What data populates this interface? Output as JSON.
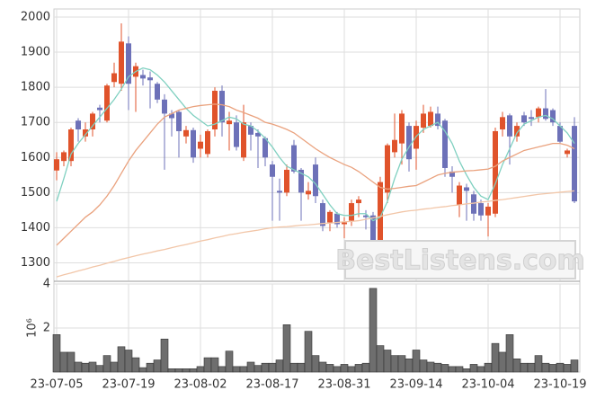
{
  "watermark": "BestListens.com",
  "chart_data": [
    {
      "type": "candlestick",
      "categories": [
        "23-07-05",
        null,
        null,
        null,
        null,
        null,
        null,
        null,
        null,
        null,
        "23-07-19",
        null,
        null,
        null,
        null,
        null,
        null,
        null,
        null,
        null,
        "23-08-02",
        null,
        null,
        null,
        null,
        null,
        null,
        null,
        null,
        null,
        "23-08-17",
        null,
        null,
        null,
        null,
        null,
        null,
        null,
        null,
        null,
        "23-08-31",
        null,
        null,
        null,
        null,
        null,
        null,
        null,
        null,
        null,
        "23-09-14",
        null,
        null,
        null,
        null,
        null,
        null,
        null,
        null,
        null,
        "23-10-04",
        null,
        null,
        null,
        null,
        null,
        null,
        null,
        null,
        null,
        "23-10-19",
        null,
        null
      ],
      "open": [
        1563,
        1590,
        1590,
        1705,
        1660,
        1680,
        1742,
        1705,
        1815,
        1810,
        1925,
        1830,
        1835,
        1828,
        1810,
        1765,
        1725,
        1730,
        1660,
        1678,
        1625,
        1610,
        1680,
        1790,
        1695,
        1700,
        1600,
        1690,
        1670,
        1655,
        1580,
        1505,
        1500,
        1635,
        1565,
        1495,
        1580,
        1470,
        1415,
        1440,
        1410,
        1420,
        1470,
        1435,
        1435,
        1360,
        1500,
        1615,
        1640,
        1690,
        1625,
        1685,
        1690,
        1725,
        1705,
        1560,
        1465,
        1515,
        1495,
        1470,
        1435,
        1440,
        1680,
        1720,
        1660,
        1720,
        1715,
        1715,
        1740,
        1735,
        1690,
        1610,
        1690
      ],
      "high": [
        1615,
        1620,
        1685,
        1712,
        1700,
        1730,
        1750,
        1810,
        1870,
        1982,
        1945,
        1870,
        1850,
        1845,
        1815,
        1780,
        1735,
        1735,
        1690,
        1685,
        1665,
        1680,
        1800,
        1805,
        1730,
        1720,
        1750,
        1700,
        1680,
        1660,
        1590,
        1540,
        1580,
        1650,
        1570,
        1530,
        1600,
        1480,
        1450,
        1445,
        1430,
        1480,
        1490,
        1450,
        1445,
        1545,
        1640,
        1725,
        1735,
        1700,
        1705,
        1750,
        1745,
        1745,
        1710,
        1575,
        1530,
        1525,
        1505,
        1480,
        1470,
        1685,
        1730,
        1725,
        1700,
        1730,
        1735,
        1745,
        1795,
        1740,
        1700,
        1625,
        1715
      ],
      "low": [
        1535,
        1575,
        1575,
        1645,
        1645,
        1660,
        1700,
        1700,
        1800,
        1790,
        1735,
        1730,
        1805,
        1740,
        1755,
        1565,
        1660,
        1600,
        1640,
        1585,
        1600,
        1600,
        1660,
        1660,
        1620,
        1620,
        1590,
        1620,
        1570,
        1575,
        1420,
        1420,
        1490,
        1555,
        1420,
        1480,
        1470,
        1390,
        1390,
        1400,
        1370,
        1405,
        1430,
        1395,
        1345,
        1350,
        1470,
        1600,
        1580,
        1560,
        1565,
        1670,
        1685,
        1680,
        1545,
        1500,
        1430,
        1420,
        1420,
        1420,
        1375,
        1430,
        1660,
        1580,
        1645,
        1690,
        1690,
        1700,
        1705,
        1690,
        1640,
        1600,
        1470
      ],
      "close": [
        1595,
        1615,
        1680,
        1680,
        1680,
        1725,
        1735,
        1805,
        1840,
        1930,
        1810,
        1860,
        1825,
        1820,
        1765,
        1725,
        1712,
        1675,
        1678,
        1600,
        1645,
        1675,
        1790,
        1700,
        1705,
        1630,
        1700,
        1665,
        1660,
        1600,
        1545,
        1500,
        1565,
        1560,
        1500,
        1505,
        1490,
        1405,
        1445,
        1410,
        1415,
        1470,
        1480,
        1430,
        1350,
        1530,
        1635,
        1650,
        1725,
        1595,
        1690,
        1725,
        1730,
        1690,
        1570,
        1545,
        1520,
        1505,
        1440,
        1435,
        1460,
        1675,
        1715,
        1660,
        1690,
        1700,
        1710,
        1740,
        1710,
        1700,
        1645,
        1620,
        1475
      ],
      "up_color": "#e0532b",
      "down_color": "#6d71b8",
      "series": [
        {
          "color": "#7fd0c0",
          "values": [
            1475,
            1540,
            1610,
            1640,
            1665,
            1690,
            1715,
            1740,
            1765,
            1795,
            1830,
            1845,
            1855,
            1850,
            1835,
            1815,
            1790,
            1765,
            1740,
            1720,
            1705,
            1690,
            1695,
            1705,
            1715,
            1710,
            1695,
            1690,
            1675,
            1655,
            1630,
            1600,
            1575,
            1565,
            1555,
            1545,
            1525,
            1495,
            1465,
            1440,
            1435,
            1435,
            1440,
            1440,
            1420,
            1430,
            1475,
            1540,
            1595,
            1630,
            1660,
            1680,
            1690,
            1700,
            1675,
            1640,
            1590,
            1550,
            1515,
            1490,
            1480,
            1525,
            1580,
            1625,
            1670,
            1695,
            1705,
            1715,
            1720,
            1710,
            1690,
            1670,
            1640
          ]
        },
        {
          "color": "#eaa27e",
          "values": [
            1350,
            1370,
            1390,
            1410,
            1430,
            1445,
            1465,
            1490,
            1520,
            1555,
            1590,
            1620,
            1645,
            1670,
            1695,
            1715,
            1725,
            1735,
            1740,
            1745,
            1748,
            1750,
            1752,
            1750,
            1745,
            1735,
            1728,
            1720,
            1712,
            1700,
            1695,
            1688,
            1680,
            1670,
            1655,
            1640,
            1625,
            1612,
            1600,
            1590,
            1580,
            1572,
            1560,
            1545,
            1530,
            1515,
            1510,
            1512,
            1515,
            1518,
            1520,
            1530,
            1540,
            1550,
            1555,
            1558,
            1560,
            1562,
            1563,
            1565,
            1567,
            1575,
            1590,
            1600,
            1610,
            1620,
            1625,
            1630,
            1635,
            1640,
            1640,
            1635,
            1625
          ]
        },
        {
          "color": "#f2c6a8",
          "values": [
            1260,
            1266,
            1271,
            1277,
            1282,
            1288,
            1293,
            1299,
            1304,
            1310,
            1315,
            1320,
            1325,
            1329,
            1334,
            1338,
            1343,
            1348,
            1352,
            1357,
            1362,
            1366,
            1371,
            1375,
            1380,
            1383,
            1387,
            1390,
            1393,
            1397,
            1400,
            1402,
            1403,
            1405,
            1407,
            1408,
            1410,
            1412,
            1413,
            1415,
            1417,
            1418,
            1420,
            1424,
            1428,
            1432,
            1437,
            1441,
            1445,
            1448,
            1450,
            1453,
            1455,
            1458,
            1460,
            1463,
            1465,
            1468,
            1470,
            1473,
            1475,
            1478,
            1480,
            1483,
            1486,
            1489,
            1492,
            1495,
            1497,
            1499,
            1501,
            1503,
            1505
          ]
        }
      ],
      "ylim": [
        1250,
        2023
      ],
      "yticks": [
        1300,
        1400,
        1500,
        1600,
        1700,
        1800,
        1900,
        2000
      ],
      "grid": true
    },
    {
      "type": "bar",
      "ylabel": "10⁶",
      "color": "#6e6e6e",
      "values": [
        1.7,
        0.9,
        0.9,
        0.45,
        0.4,
        0.45,
        0.3,
        0.75,
        0.45,
        1.15,
        1.0,
        0.65,
        0.2,
        0.4,
        0.55,
        1.5,
        0.15,
        0.15,
        0.15,
        0.15,
        0.25,
        0.65,
        0.65,
        0.25,
        0.95,
        0.25,
        0.25,
        0.45,
        0.3,
        0.4,
        0.4,
        0.55,
        2.15,
        0.4,
        0.4,
        1.85,
        0.75,
        0.45,
        0.35,
        0.25,
        0.35,
        0.25,
        0.35,
        0.4,
        3.8,
        1.2,
        1.0,
        0.75,
        0.75,
        0.6,
        1.0,
        0.55,
        0.45,
        0.4,
        0.35,
        0.25,
        0.25,
        0.15,
        0.35,
        0.25,
        0.4,
        1.3,
        0.9,
        1.7,
        0.6,
        0.4,
        0.4,
        0.75,
        0.4,
        0.35,
        0.4,
        0.35,
        0.55
      ],
      "ylim": [
        0,
        4
      ],
      "yticks": [
        2,
        4
      ],
      "grid": true
    }
  ]
}
